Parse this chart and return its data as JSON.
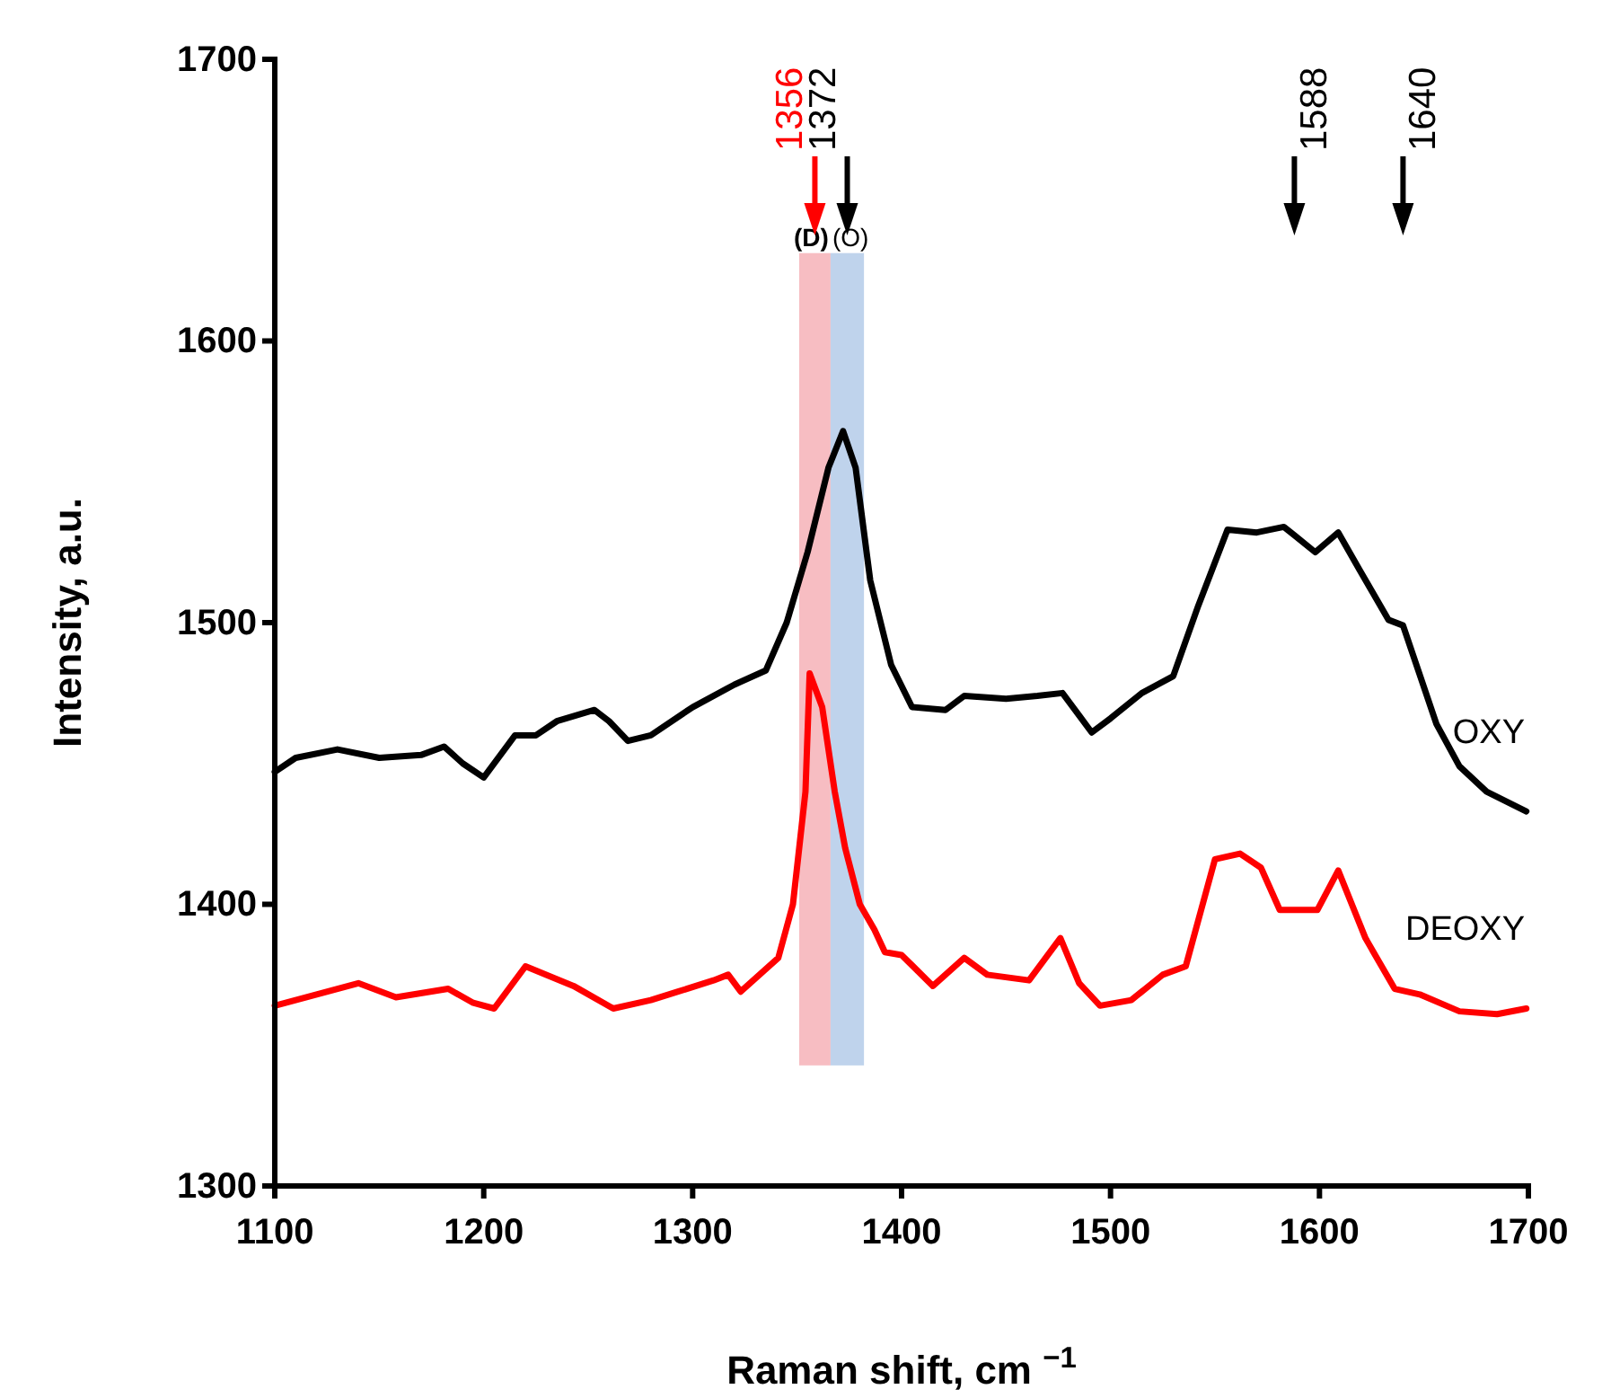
{
  "chart_data": {
    "type": "line",
    "xlabel": "Raman shift, cm $^{−1}$",
    "ylabel": "Intensity, a.u.",
    "xlim": [
      1100,
      1700
    ],
    "ylim": [
      1300,
      1700
    ],
    "xticks": [
      1100,
      1200,
      1300,
      1400,
      1500,
      1600,
      1700
    ],
    "yticks": [
      1300,
      1400,
      1500,
      1600,
      1700
    ],
    "grid": false,
    "legend": false,
    "marker": "none",
    "line_style": "solid",
    "series": [
      {
        "name": "OXY",
        "color": "#000000",
        "x": [
          1100,
          1110,
          1130,
          1150,
          1170,
          1181,
          1190,
          1200,
          1215,
          1225,
          1235,
          1253,
          1260,
          1269,
          1280,
          1300,
          1320,
          1335,
          1345,
          1355,
          1365,
          1372,
          1378,
          1385,
          1395,
          1405,
          1421,
          1430,
          1450,
          1465,
          1477,
          1485,
          1491,
          1500,
          1515,
          1530,
          1542,
          1556,
          1570,
          1583,
          1588,
          1598,
          1609,
          1619,
          1633,
          1640,
          1656,
          1667,
          1680,
          1699
        ],
        "values": [
          1447,
          1452,
          1455,
          1452,
          1453,
          1456,
          1450,
          1445,
          1460,
          1460,
          1465,
          1469,
          1465,
          1458,
          1460,
          1470,
          1478,
          1483,
          1500,
          1525,
          1555,
          1568,
          1555,
          1515,
          1485,
          1470,
          1469,
          1474,
          1473,
          1474,
          1475,
          1467,
          1461,
          1466,
          1475,
          1481,
          1506,
          1533,
          1532,
          1534,
          1531,
          1525,
          1532,
          1519,
          1501,
          1499,
          1464,
          1449,
          1440,
          1433
        ]
      },
      {
        "name": "DEOXY",
        "color": "#ff0000",
        "x": [
          1100,
          1120,
          1140,
          1158,
          1183,
          1195,
          1205,
          1220,
          1243,
          1262,
          1280,
          1293,
          1310,
          1317,
          1323,
          1341,
          1348,
          1354,
          1356,
          1362,
          1368,
          1373,
          1380,
          1387,
          1392,
          1400,
          1415,
          1430,
          1441,
          1461,
          1476,
          1485,
          1495,
          1510,
          1525,
          1536,
          1550,
          1562,
          1572,
          1581,
          1599,
          1609,
          1622,
          1636,
          1648,
          1667,
          1685,
          1699
        ],
        "values": [
          1364,
          1368,
          1372,
          1367,
          1370,
          1365,
          1363,
          1378,
          1371,
          1363,
          1366,
          1369,
          1373,
          1375,
          1369,
          1381,
          1400,
          1440,
          1482,
          1470,
          1440,
          1420,
          1400,
          1391,
          1383,
          1382,
          1371,
          1381,
          1375,
          1373,
          1388,
          1372,
          1364,
          1366,
          1375,
          1378,
          1416,
          1418,
          1413,
          1398,
          1398,
          1412,
          1388,
          1370,
          1368,
          1362,
          1361,
          1363
        ]
      }
    ],
    "bands": [
      {
        "axis": "x",
        "from": 1351,
        "to": 1366,
        "label": "(D)",
        "color": "#f4a7ae"
      },
      {
        "axis": "x",
        "from": 1366,
        "to": 1382,
        "label": "(O)",
        "color": "#a9c4e6"
      }
    ],
    "annotations": [
      "1356",
      "1372",
      {
        "text": "1588",
        "x": 1588
      },
      {
        "text": "1640",
        "x": 1640
      }
    ]
  }
}
